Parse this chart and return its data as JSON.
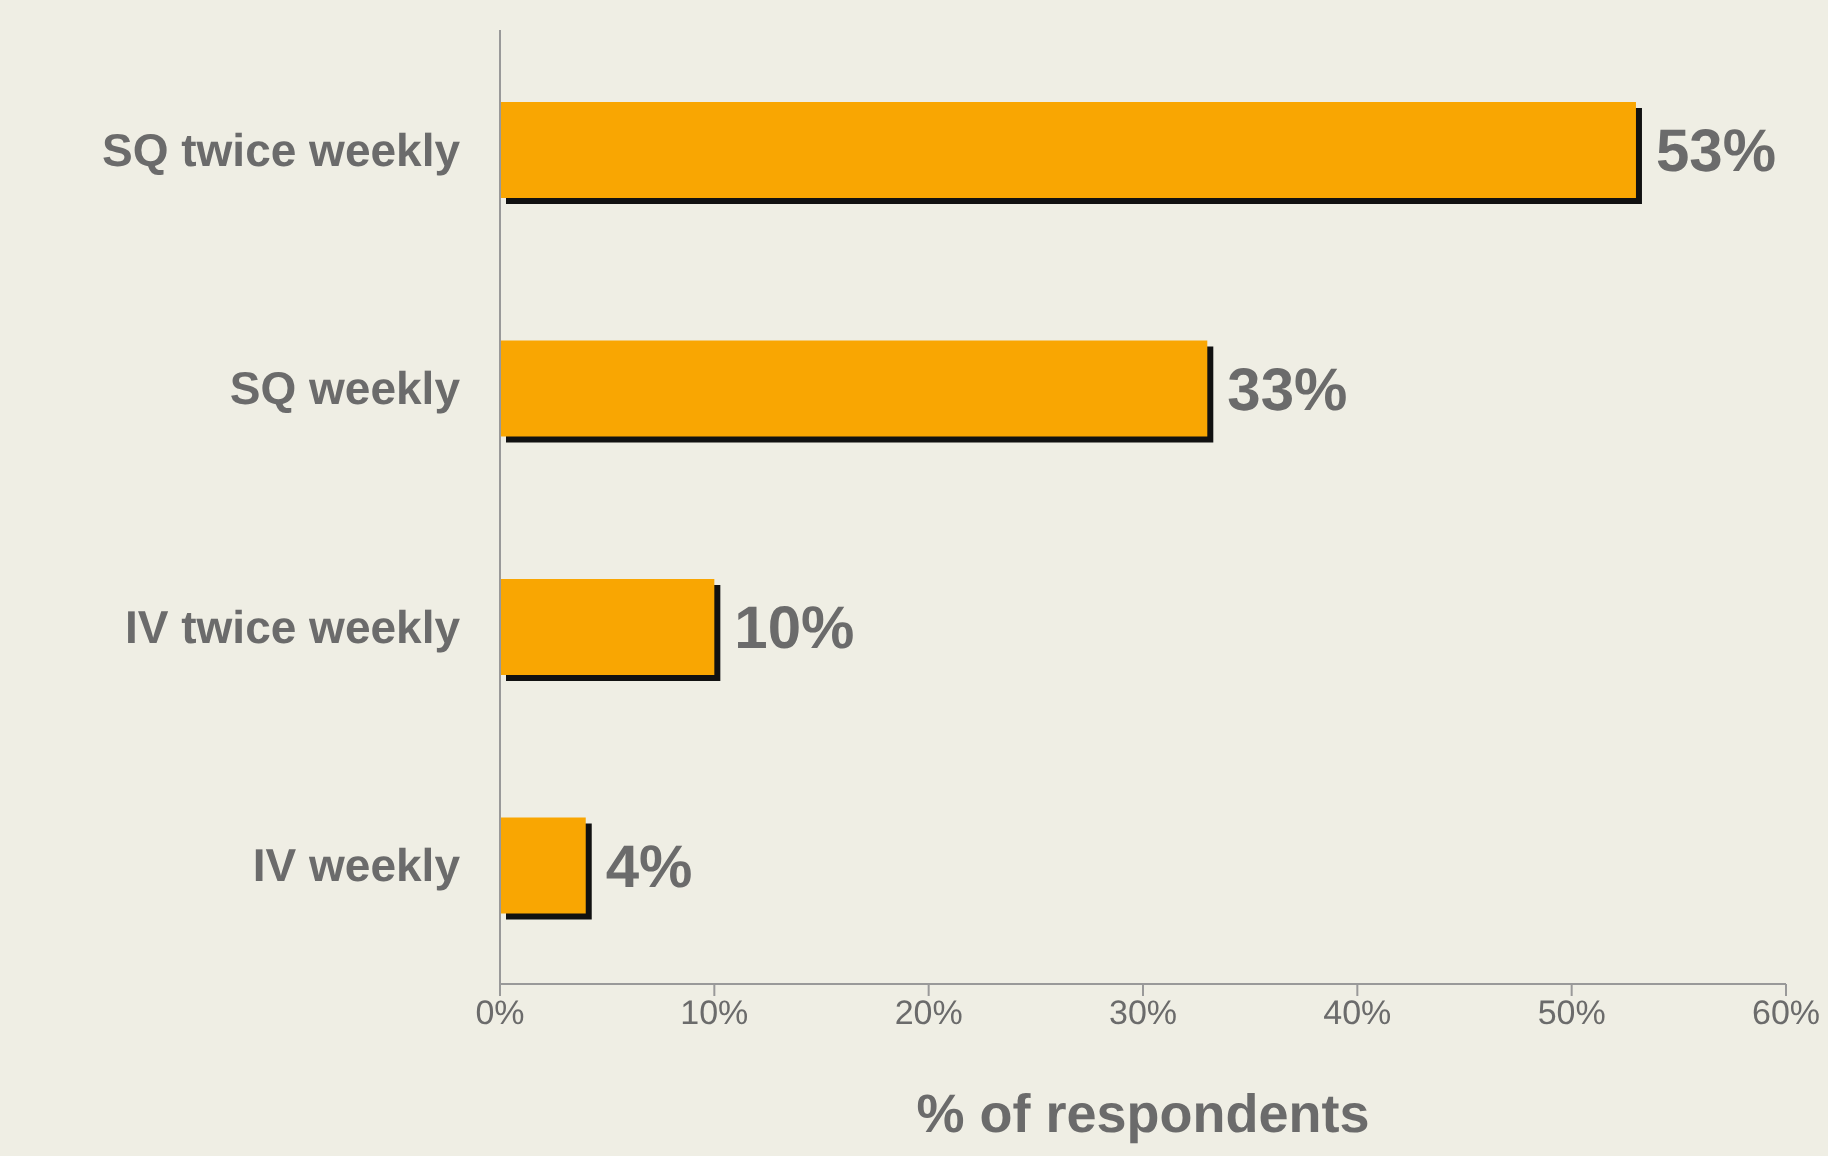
{
  "chart_data": {
    "type": "bar",
    "orientation": "horizontal",
    "xlabel": "% of respondents",
    "categories": [
      "SQ twice weekly",
      "SQ weekly",
      "IV twice weekly",
      "IV weekly"
    ],
    "values": [
      53,
      33,
      10,
      4
    ],
    "value_labels": [
      "53%",
      "33%",
      "10%",
      "4%"
    ],
    "color": "#f9a602",
    "xlim": [
      0,
      60
    ],
    "xticks": [
      {
        "value": 0,
        "label": "0%"
      },
      {
        "value": 10,
        "label": "10%"
      },
      {
        "value": 20,
        "label": "20%"
      },
      {
        "value": 30,
        "label": "30%"
      },
      {
        "value": 40,
        "label": "40%"
      },
      {
        "value": 50,
        "label": "50%"
      },
      {
        "value": 60,
        "label": "60%"
      }
    ],
    "grid": false,
    "legend": false
  }
}
